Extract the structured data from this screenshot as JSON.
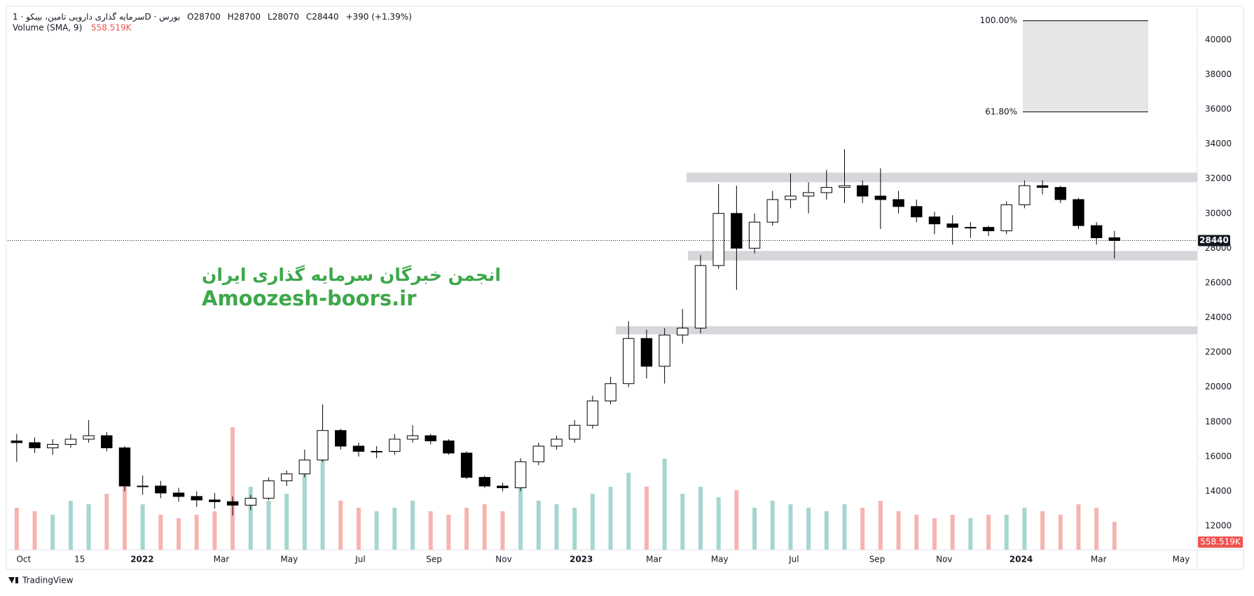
{
  "chart_data": {
    "type": "candlestick",
    "header": {
      "symbol": "سرمایه گذاری دارویی تامین، بیبکو · 1D · بورس",
      "ohlc": [
        {
          "label": "O",
          "value": 28700
        },
        {
          "label": "H",
          "value": 28700
        },
        {
          "label": "L",
          "value": 28070
        },
        {
          "label": "C",
          "value": 28440
        }
      ],
      "change": "+390 (+1.39%)"
    },
    "volume_title": "Volume (SMA, 9)",
    "volume_sma": {
      "value": 558.519,
      "label": "558.519K"
    },
    "watermark": [
      "انجمن خبرگان سرمایه گذاری ایران",
      "Amoozesh-boors.ir"
    ],
    "brand": "TradingView",
    "categories": [
      null,
      null,
      null,
      null,
      null,
      null,
      null,
      null,
      null,
      null,
      null,
      null,
      null,
      null,
      null,
      null,
      null,
      null,
      null,
      null,
      null,
      null,
      null,
      null,
      null,
      null,
      null,
      null,
      null,
      null,
      null,
      null,
      null,
      null,
      null,
      null,
      null,
      null,
      null,
      null,
      null,
      null,
      null,
      null,
      null,
      null,
      null,
      null,
      null,
      null,
      null,
      null,
      null,
      null,
      null,
      null,
      null,
      null,
      null,
      null,
      null,
      null
    ],
    "open": [
      16900,
      16800,
      16500,
      16700,
      17000,
      17200,
      16500,
      14300,
      14300,
      13900,
      13700,
      13500,
      13400,
      13200,
      13600,
      14600,
      15000,
      15800,
      17500,
      16600,
      16300,
      16300,
      17000,
      17200,
      16900,
      16200,
      14800,
      14300,
      14200,
      15700,
      16600,
      17000,
      17800,
      19200,
      20200,
      22800,
      21200,
      23000,
      23400,
      27000,
      30000,
      28000,
      29500,
      30800,
      31000,
      31200,
      31500,
      31600,
      31000,
      30800,
      30400,
      29800,
      29400,
      29200,
      29200,
      29000,
      30500,
      31600,
      31500,
      30800,
      29300,
      28600
    ],
    "high": [
      17300,
      17100,
      17000,
      17300,
      18100,
      17400,
      16600,
      14900,
      14600,
      14200,
      14000,
      13900,
      13700,
      13800,
      14800,
      15200,
      16400,
      19000,
      17600,
      16800,
      16600,
      17300,
      17800,
      17300,
      17000,
      16300,
      14900,
      14500,
      15900,
      16800,
      17200,
      18100,
      19500,
      20600,
      23800,
      23300,
      23400,
      24500,
      27600,
      31700,
      31600,
      30000,
      31300,
      32300,
      31800,
      32500,
      33700,
      31900,
      32600,
      31300,
      30800,
      30100,
      29900,
      29500,
      29300,
      30700,
      31900,
      31900,
      31600,
      30900,
      29500,
      29000
    ],
    "low": [
      15700,
      16200,
      16100,
      16500,
      16800,
      16300,
      14000,
      13800,
      13600,
      13400,
      13100,
      13000,
      12600,
      12900,
      13500,
      14300,
      14800,
      15700,
      16400,
      16000,
      15900,
      16100,
      16800,
      16700,
      16100,
      14700,
      14200,
      14000,
      14000,
      15500,
      16400,
      16800,
      17600,
      19000,
      20000,
      20500,
      20200,
      22500,
      23100,
      26800,
      25600,
      27700,
      29300,
      30300,
      30000,
      30800,
      30600,
      30600,
      29100,
      30000,
      29500,
      28800,
      28200,
      28600,
      28700,
      28800,
      30300,
      31100,
      30600,
      29100,
      28200,
      27400
    ],
    "close": [
      16800,
      16500,
      16700,
      17000,
      17200,
      16500,
      14300,
      14300,
      13900,
      13700,
      13500,
      13400,
      13200,
      13600,
      14600,
      15000,
      15800,
      17500,
      16600,
      16300,
      16300,
      17000,
      17200,
      16900,
      16200,
      14800,
      14300,
      14200,
      15700,
      16600,
      17000,
      17800,
      19200,
      20200,
      22800,
      21200,
      23000,
      23400,
      27000,
      30000,
      28000,
      29500,
      30800,
      31000,
      31200,
      31500,
      31600,
      31000,
      30800,
      30400,
      29800,
      29400,
      29200,
      29200,
      29000,
      30500,
      31600,
      31500,
      30800,
      29300,
      28600,
      28440
    ],
    "volume": [
      600,
      550,
      500,
      700,
      650,
      800,
      900,
      650,
      500,
      450,
      500,
      550,
      1750,
      900,
      700,
      800,
      1100,
      1300,
      700,
      600,
      550,
      600,
      700,
      550,
      500,
      600,
      650,
      550,
      950,
      700,
      650,
      600,
      800,
      900,
      1100,
      900,
      1300,
      800,
      900,
      750,
      850,
      600,
      700,
      650,
      600,
      550,
      650,
      600,
      700,
      550,
      500,
      450,
      500,
      450,
      500,
      500,
      600,
      550,
      500,
      650,
      600,
      400
    ],
    "volume_lim": [
      0,
      2000
    ],
    "candle_up": "#ffffff",
    "candle_down": "#000000",
    "wick": "#000000",
    "volume_up": "#a5d6d0",
    "volume_down": "#f7b3b1",
    "ylim": [
      10630,
      41850
    ],
    "yticks": [
      12000,
      14000,
      16000,
      18000,
      20000,
      22000,
      24000,
      26000,
      28000,
      30000,
      32000,
      34000,
      36000,
      38000,
      40000
    ],
    "xlim": [
      -0.5,
      65.6
    ],
    "xticks": [
      {
        "value": 0.39,
        "label": "Oct"
      },
      {
        "value": 3.5,
        "label": "15"
      },
      {
        "value": 6.97,
        "label": "2022"
      },
      {
        "value": 11.37,
        "label": "Mar"
      },
      {
        "value": 15.14,
        "label": "May"
      },
      {
        "value": 19.1,
        "label": "Jul"
      },
      {
        "value": 23.19,
        "label": "Sep"
      },
      {
        "value": 27.06,
        "label": "Nov"
      },
      {
        "value": 31.37,
        "label": "2023"
      },
      {
        "value": 35.41,
        "label": "Mar"
      },
      {
        "value": 39.06,
        "label": "May"
      },
      {
        "value": 43.19,
        "label": "Jul"
      },
      {
        "value": 47.81,
        "label": "Sep"
      },
      {
        "value": 51.54,
        "label": "Nov"
      },
      {
        "value": 55.81,
        "label": "2024"
      },
      {
        "value": 60.12,
        "label": "Mar"
      },
      {
        "value": 64.7,
        "label": "May"
      }
    ],
    "zones": [
      {
        "top": 32350,
        "bottom": 31800
      },
      {
        "top": 27840,
        "bottom": 27290
      },
      {
        "top": 23500,
        "bottom": 23040
      }
    ],
    "zone_color": "#d6d6db",
    "fib": [
      {
        "value": 41100,
        "label": "100.00%"
      },
      {
        "value": 35850,
        "label": "61.80%"
      }
    ],
    "fib_color": "#e6e6e6",
    "grid": false
  }
}
